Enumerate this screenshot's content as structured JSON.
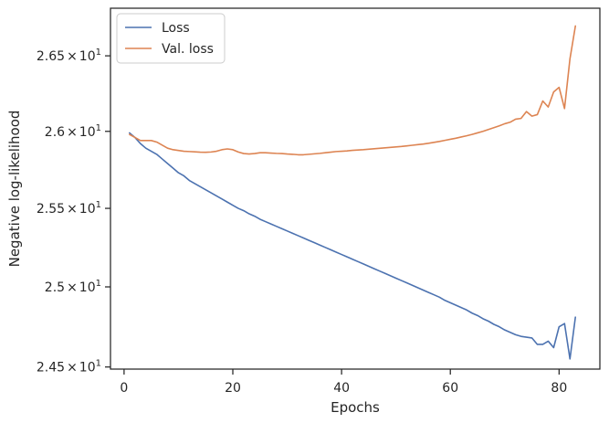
{
  "chart_data": {
    "type": "line",
    "title": "",
    "xlabel": "Epochs",
    "ylabel": "Negative log-likelihood",
    "xlim": [
      -2.5,
      87.5
    ],
    "ylim": [
      24.487,
      26.82
    ],
    "xticks": [
      {
        "value": 0,
        "label": "0"
      },
      {
        "value": 20,
        "label": "20"
      },
      {
        "value": 40,
        "label": "40"
      },
      {
        "value": 60,
        "label": "60"
      },
      {
        "value": 80,
        "label": "80"
      }
    ],
    "yticks": [
      {
        "value": 24.5,
        "mantissa": "2.45",
        "times": "×",
        "base": "10",
        "exp": "1"
      },
      {
        "value": 25.0,
        "mantissa": "2.5",
        "times": "×",
        "base": "10",
        "exp": "1"
      },
      {
        "value": 25.5,
        "mantissa": "2.55",
        "times": "×",
        "base": "10",
        "exp": "1"
      },
      {
        "value": 26.0,
        "mantissa": "2.6",
        "times": "×",
        "base": "10",
        "exp": "1"
      },
      {
        "value": 26.5,
        "mantissa": "2.65",
        "times": "×",
        "base": "10",
        "exp": "1"
      }
    ],
    "yscale": "log",
    "grid": false,
    "legend": "upper-left",
    "colors": {
      "Loss": "#4c72b0",
      "Val. loss": "#dd8452"
    },
    "series": [
      {
        "name": "Loss",
        "x": [
          1,
          2,
          3,
          4,
          5,
          6,
          7,
          8,
          9,
          10,
          11,
          12,
          13,
          14,
          15,
          16,
          17,
          18,
          19,
          20,
          21,
          22,
          23,
          24,
          25,
          26,
          27,
          28,
          29,
          30,
          31,
          32,
          33,
          34,
          35,
          36,
          37,
          38,
          39,
          40,
          41,
          42,
          43,
          44,
          45,
          46,
          47,
          48,
          49,
          50,
          51,
          52,
          53,
          54,
          55,
          56,
          57,
          58,
          59,
          60,
          61,
          62,
          63,
          64,
          65,
          66,
          67,
          68,
          69,
          70,
          71,
          72,
          73,
          74,
          75,
          76,
          77,
          78,
          79,
          80,
          81,
          82,
          83
        ],
        "values": [
          25.99,
          25.96,
          25.92,
          25.89,
          25.87,
          25.85,
          25.82,
          25.79,
          25.76,
          25.73,
          25.71,
          25.68,
          25.66,
          25.64,
          25.62,
          25.6,
          25.58,
          25.56,
          25.54,
          25.52,
          25.5,
          25.485,
          25.465,
          25.45,
          25.43,
          25.415,
          25.4,
          25.385,
          25.37,
          25.355,
          25.34,
          25.325,
          25.31,
          25.295,
          25.28,
          25.265,
          25.25,
          25.235,
          25.22,
          25.205,
          25.19,
          25.175,
          25.16,
          25.145,
          25.13,
          25.115,
          25.1,
          25.085,
          25.07,
          25.055,
          25.04,
          25.025,
          25.01,
          24.995,
          24.98,
          24.965,
          24.95,
          24.935,
          24.915,
          24.9,
          24.885,
          24.87,
          24.855,
          24.835,
          24.82,
          24.8,
          24.785,
          24.765,
          24.75,
          24.73,
          24.715,
          24.7,
          24.69,
          24.685,
          24.68,
          24.64,
          24.64,
          24.66,
          24.62,
          24.75,
          24.77,
          24.55,
          24.81
        ]
      },
      {
        "name": "Val. loss",
        "x": [
          1,
          2,
          3,
          4,
          5,
          6,
          7,
          8,
          9,
          10,
          11,
          12,
          13,
          14,
          15,
          16,
          17,
          18,
          19,
          20,
          21,
          22,
          23,
          24,
          25,
          26,
          27,
          28,
          29,
          30,
          31,
          32,
          33,
          34,
          35,
          36,
          37,
          38,
          39,
          40,
          41,
          42,
          43,
          44,
          45,
          46,
          47,
          48,
          49,
          50,
          51,
          52,
          53,
          54,
          55,
          56,
          57,
          58,
          59,
          60,
          61,
          62,
          63,
          64,
          65,
          66,
          67,
          68,
          69,
          70,
          71,
          72,
          73,
          74,
          75,
          76,
          77,
          78,
          79,
          80,
          81,
          82,
          83
        ],
        "values": [
          25.98,
          25.96,
          25.94,
          25.94,
          25.94,
          25.93,
          25.91,
          25.89,
          25.88,
          25.875,
          25.87,
          25.868,
          25.866,
          25.864,
          25.863,
          25.865,
          25.87,
          25.88,
          25.885,
          25.88,
          25.865,
          25.855,
          25.852,
          25.855,
          25.86,
          25.86,
          25.858,
          25.856,
          25.855,
          25.852,
          25.85,
          25.847,
          25.847,
          25.85,
          25.853,
          25.856,
          25.86,
          25.864,
          25.868,
          25.87,
          25.872,
          25.876,
          25.878,
          25.88,
          25.883,
          25.886,
          25.889,
          25.892,
          25.895,
          25.898,
          25.901,
          25.905,
          25.909,
          25.913,
          25.917,
          25.922,
          25.928,
          25.934,
          25.941,
          25.948,
          25.955,
          25.963,
          25.971,
          25.98,
          25.99,
          26.0,
          26.012,
          26.024,
          26.036,
          26.05,
          26.06,
          26.08,
          26.085,
          26.13,
          26.1,
          26.11,
          26.2,
          26.16,
          26.26,
          26.29,
          26.15,
          26.48,
          26.7
        ]
      }
    ]
  }
}
